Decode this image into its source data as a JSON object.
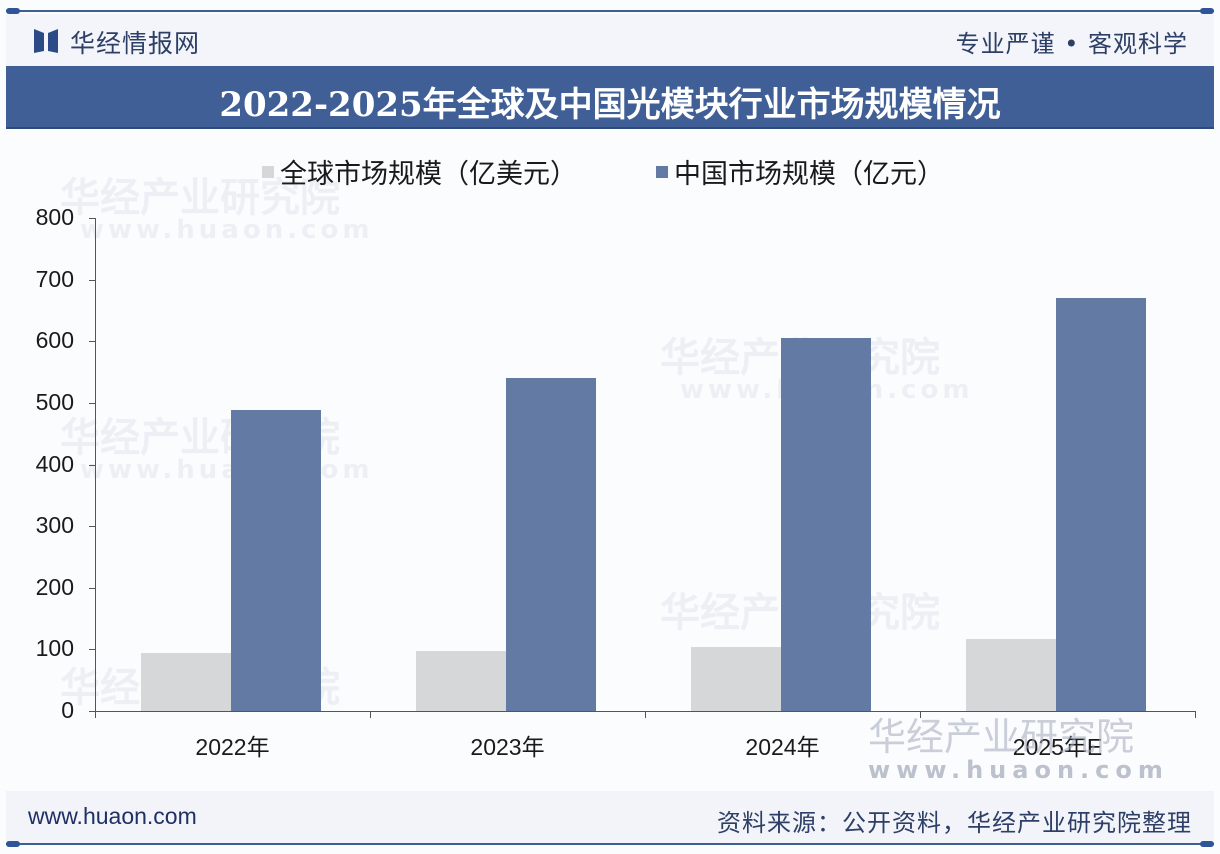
{
  "header": {
    "brand_name": "华经情报网",
    "slogan": "专业严谨 • 客观科学",
    "title": "2022-2025年全球及中国光模块行业市场规模情况"
  },
  "legend": {
    "items": [
      {
        "label": "全球市场规模（亿美元）",
        "color": "#d6d7d9"
      },
      {
        "label": "中国市场规模（亿元）",
        "color": "#637aa4"
      }
    ]
  },
  "y_axis": {
    "ticks": [
      "800",
      "700",
      "600",
      "500",
      "400",
      "300",
      "200",
      "100",
      "0"
    ]
  },
  "x_axis": {
    "categories": [
      "2022年",
      "2023年",
      "2024年",
      "2025年E"
    ]
  },
  "watermark": {
    "text": "华经产业研究院",
    "url": "www.huaon.com"
  },
  "footer": {
    "url": "www.huaon.com",
    "source": "资料来源：公开资料，华经产业研究院整理"
  },
  "colors": {
    "title_bar": "#3f5f96",
    "accent": "#2e5597",
    "series_global": "#d6d7d9",
    "series_china": "#637aa4"
  },
  "chart_data": {
    "type": "bar",
    "title": "2022-2025年全球及中国光模块行业市场规模情况",
    "categories": [
      "2022年",
      "2023年",
      "2024年",
      "2025年E"
    ],
    "series": [
      {
        "name": "全球市场规模（亿美元）",
        "values": [
          94,
          97,
          104,
          117
        ],
        "color": "#d6d7d9"
      },
      {
        "name": "中国市场规模（亿元）",
        "values": [
          488,
          540,
          605,
          670
        ],
        "color": "#637aa4"
      }
    ],
    "xlabel": "",
    "ylabel": "",
    "ylim": [
      0,
      800
    ],
    "yticks": [
      0,
      100,
      200,
      300,
      400,
      500,
      600,
      700,
      800
    ],
    "grid": false,
    "legend_position": "top",
    "source": "资料来源：公开资料，华经产业研究院整理"
  }
}
